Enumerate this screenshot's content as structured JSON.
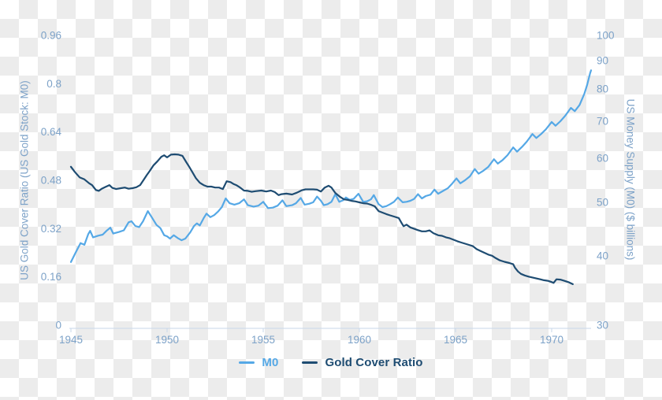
{
  "colors": {
    "checker": "#ececec",
    "axis_line": "#c7d7ea",
    "tick_text": "#7da2c8",
    "axis_title_text": "#7da2c8",
    "m0_line": "#55a8e6",
    "gcr_line": "#1e4c72"
  },
  "legend": {
    "items": [
      {
        "label": "M0",
        "color": "#55a8e6"
      },
      {
        "label": "Gold Cover Ratio",
        "color": "#1e4c72"
      }
    ]
  },
  "chart_data": {
    "type": "line",
    "title": "",
    "x_axis": {
      "range": [
        1945,
        1972.05
      ],
      "ticks": [
        {
          "label": "1945",
          "value": 1945
        },
        {
          "label": "1950",
          "value": 1950
        },
        {
          "label": "1955",
          "value": 1955
        },
        {
          "label": "1960",
          "value": 1960
        },
        {
          "label": "1965",
          "value": 1965
        },
        {
          "label": "1970",
          "value": 1970
        }
      ]
    },
    "left_axis": {
      "title": "US Gold Cover Ratio (US Gold Stock: M0)",
      "scale": "linear",
      "range": [
        0,
        0.96
      ],
      "ticks": [
        {
          "label": "0.96",
          "value": 0.96
        },
        {
          "label": "0.8",
          "value": 0.8
        },
        {
          "label": "0.64",
          "value": 0.64
        },
        {
          "label": "0.48",
          "value": 0.48
        },
        {
          "label": "0.32",
          "value": 0.32
        },
        {
          "label": "0.16",
          "value": 0.16
        },
        {
          "label": "0",
          "value": 0
        }
      ]
    },
    "right_axis": {
      "title": "US Money Supply (M0) ($ billions)",
      "scale": "log",
      "range": [
        30,
        100
      ],
      "ticks": [
        {
          "label": "100",
          "value": 100
        },
        {
          "label": "90",
          "value": 90
        },
        {
          "label": "80",
          "value": 80
        },
        {
          "label": "70",
          "value": 70
        },
        {
          "label": "60",
          "value": 60
        },
        {
          "label": "50",
          "value": 50
        },
        {
          "label": "40",
          "value": 40
        },
        {
          "label": "30",
          "value": 30
        }
      ]
    },
    "series": [
      {
        "name": "M0",
        "axis": "right",
        "color": "#55a8e6",
        "points": [
          [
            1945.0,
            39.0
          ],
          [
            1945.25,
            40.6
          ],
          [
            1945.5,
            42.2
          ],
          [
            1945.7,
            41.9
          ],
          [
            1945.9,
            43.8
          ],
          [
            1946.0,
            44.4
          ],
          [
            1946.15,
            43.2
          ],
          [
            1946.4,
            43.5
          ],
          [
            1946.65,
            43.7
          ],
          [
            1946.85,
            44.4
          ],
          [
            1947.05,
            45.0
          ],
          [
            1947.2,
            43.9
          ],
          [
            1947.5,
            44.2
          ],
          [
            1947.75,
            44.5
          ],
          [
            1948.0,
            46.0
          ],
          [
            1948.15,
            46.2
          ],
          [
            1948.35,
            45.3
          ],
          [
            1948.55,
            45.1
          ],
          [
            1948.75,
            46.2
          ],
          [
            1949.0,
            48.2
          ],
          [
            1949.2,
            47.0
          ],
          [
            1949.45,
            45.5
          ],
          [
            1949.65,
            44.9
          ],
          [
            1949.85,
            43.6
          ],
          [
            1950.0,
            43.4
          ],
          [
            1950.15,
            43.0
          ],
          [
            1950.35,
            43.6
          ],
          [
            1950.55,
            43.1
          ],
          [
            1950.75,
            42.7
          ],
          [
            1950.95,
            43.0
          ],
          [
            1951.2,
            44.1
          ],
          [
            1951.4,
            45.3
          ],
          [
            1951.55,
            45.8
          ],
          [
            1951.7,
            45.4
          ],
          [
            1951.9,
            46.8
          ],
          [
            1952.05,
            47.7
          ],
          [
            1952.25,
            47.0
          ],
          [
            1952.45,
            47.4
          ],
          [
            1952.65,
            48.1
          ],
          [
            1952.85,
            49.0
          ],
          [
            1953.05,
            50.8
          ],
          [
            1953.25,
            49.8
          ],
          [
            1953.5,
            49.5
          ],
          [
            1953.75,
            49.8
          ],
          [
            1954.0,
            50.6
          ],
          [
            1954.2,
            49.4
          ],
          [
            1954.5,
            49.1
          ],
          [
            1954.75,
            49.3
          ],
          [
            1955.0,
            50.1
          ],
          [
            1955.25,
            48.8
          ],
          [
            1955.5,
            48.9
          ],
          [
            1955.75,
            49.3
          ],
          [
            1956.0,
            50.4
          ],
          [
            1956.2,
            49.2
          ],
          [
            1956.5,
            49.4
          ],
          [
            1956.7,
            49.8
          ],
          [
            1956.95,
            50.9
          ],
          [
            1957.15,
            49.5
          ],
          [
            1957.4,
            49.7
          ],
          [
            1957.6,
            50.0
          ],
          [
            1957.8,
            51.2
          ],
          [
            1958.0,
            50.3
          ],
          [
            1958.15,
            49.4
          ],
          [
            1958.35,
            49.6
          ],
          [
            1958.55,
            50.1
          ],
          [
            1958.75,
            51.7
          ],
          [
            1958.95,
            50.1
          ],
          [
            1959.15,
            50.4
          ],
          [
            1959.3,
            51.0
          ],
          [
            1959.5,
            50.5
          ],
          [
            1959.7,
            50.7
          ],
          [
            1959.95,
            51.8
          ],
          [
            1960.2,
            50.1
          ],
          [
            1960.4,
            50.2
          ],
          [
            1960.6,
            50.6
          ],
          [
            1960.75,
            51.5
          ],
          [
            1961.0,
            49.6
          ],
          [
            1961.2,
            49.0
          ],
          [
            1961.4,
            49.2
          ],
          [
            1961.6,
            49.6
          ],
          [
            1961.8,
            50.1
          ],
          [
            1962.0,
            51.0
          ],
          [
            1962.25,
            50.0
          ],
          [
            1962.45,
            50.1
          ],
          [
            1962.65,
            50.3
          ],
          [
            1962.85,
            50.7
          ],
          [
            1963.05,
            51.7
          ],
          [
            1963.25,
            50.8
          ],
          [
            1963.45,
            51.3
          ],
          [
            1963.7,
            51.6
          ],
          [
            1963.9,
            52.7
          ],
          [
            1964.1,
            51.8
          ],
          [
            1964.35,
            52.4
          ],
          [
            1964.6,
            53.0
          ],
          [
            1964.8,
            53.9
          ],
          [
            1965.05,
            55.2
          ],
          [
            1965.25,
            54.1
          ],
          [
            1965.5,
            54.8
          ],
          [
            1965.75,
            55.7
          ],
          [
            1966.0,
            57.4
          ],
          [
            1966.2,
            56.3
          ],
          [
            1966.45,
            57.0
          ],
          [
            1966.7,
            57.9
          ],
          [
            1967.0,
            59.8
          ],
          [
            1967.2,
            58.7
          ],
          [
            1967.45,
            59.6
          ],
          [
            1967.7,
            60.8
          ],
          [
            1968.0,
            62.8
          ],
          [
            1968.2,
            61.7
          ],
          [
            1968.45,
            62.9
          ],
          [
            1968.7,
            64.3
          ],
          [
            1969.0,
            66.4
          ],
          [
            1969.2,
            65.3
          ],
          [
            1969.45,
            66.4
          ],
          [
            1969.7,
            67.7
          ],
          [
            1970.0,
            69.8
          ],
          [
            1970.2,
            68.7
          ],
          [
            1970.45,
            70.0
          ],
          [
            1970.7,
            71.6
          ],
          [
            1971.0,
            74.0
          ],
          [
            1971.2,
            73.0
          ],
          [
            1971.45,
            74.9
          ],
          [
            1971.7,
            78.5
          ],
          [
            1971.85,
            81.5
          ],
          [
            1972.0,
            85.5
          ],
          [
            1972.05,
            86.5
          ]
        ]
      },
      {
        "name": "Gold Cover Ratio",
        "axis": "left",
        "color": "#1e4c72",
        "points": [
          [
            1945.0,
            0.525
          ],
          [
            1945.2,
            0.508
          ],
          [
            1945.45,
            0.49
          ],
          [
            1945.7,
            0.483
          ],
          [
            1945.95,
            0.47
          ],
          [
            1946.1,
            0.464
          ],
          [
            1946.3,
            0.448
          ],
          [
            1946.45,
            0.445
          ],
          [
            1946.6,
            0.452
          ],
          [
            1946.8,
            0.458
          ],
          [
            1947.0,
            0.464
          ],
          [
            1947.15,
            0.455
          ],
          [
            1947.35,
            0.451
          ],
          [
            1947.6,
            0.454
          ],
          [
            1947.8,
            0.456
          ],
          [
            1948.0,
            0.452
          ],
          [
            1948.2,
            0.454
          ],
          [
            1948.4,
            0.457
          ],
          [
            1948.6,
            0.464
          ],
          [
            1948.8,
            0.483
          ],
          [
            1948.95,
            0.498
          ],
          [
            1949.1,
            0.511
          ],
          [
            1949.3,
            0.53
          ],
          [
            1949.5,
            0.543
          ],
          [
            1949.7,
            0.558
          ],
          [
            1949.85,
            0.563
          ],
          [
            1950.0,
            0.556
          ],
          [
            1950.2,
            0.565
          ],
          [
            1950.4,
            0.566
          ],
          [
            1950.6,
            0.565
          ],
          [
            1950.8,
            0.561
          ],
          [
            1951.0,
            0.54
          ],
          [
            1951.15,
            0.525
          ],
          [
            1951.3,
            0.509
          ],
          [
            1951.5,
            0.487
          ],
          [
            1951.7,
            0.472
          ],
          [
            1951.9,
            0.464
          ],
          [
            1952.1,
            0.459
          ],
          [
            1952.3,
            0.459
          ],
          [
            1952.5,
            0.456
          ],
          [
            1952.7,
            0.456
          ],
          [
            1952.9,
            0.451
          ],
          [
            1953.1,
            0.477
          ],
          [
            1953.3,
            0.474
          ],
          [
            1953.45,
            0.468
          ],
          [
            1953.6,
            0.464
          ],
          [
            1953.8,
            0.456
          ],
          [
            1954.0,
            0.446
          ],
          [
            1954.2,
            0.445
          ],
          [
            1954.4,
            0.442
          ],
          [
            1954.6,
            0.444
          ],
          [
            1954.9,
            0.446
          ],
          [
            1955.15,
            0.443
          ],
          [
            1955.4,
            0.446
          ],
          [
            1955.6,
            0.441
          ],
          [
            1955.8,
            0.431
          ],
          [
            1955.95,
            0.434
          ],
          [
            1956.2,
            0.436
          ],
          [
            1956.5,
            0.433
          ],
          [
            1956.75,
            0.439
          ],
          [
            1957.0,
            0.447
          ],
          [
            1957.2,
            0.45
          ],
          [
            1957.4,
            0.45
          ],
          [
            1957.6,
            0.45
          ],
          [
            1957.8,
            0.449
          ],
          [
            1958.0,
            0.443
          ],
          [
            1958.2,
            0.456
          ],
          [
            1958.4,
            0.462
          ],
          [
            1958.55,
            0.456
          ],
          [
            1958.75,
            0.438
          ],
          [
            1959.0,
            0.425
          ],
          [
            1959.2,
            0.417
          ],
          [
            1959.4,
            0.415
          ],
          [
            1959.6,
            0.412
          ],
          [
            1959.8,
            0.41
          ],
          [
            1960.0,
            0.407
          ],
          [
            1960.2,
            0.404
          ],
          [
            1960.4,
            0.403
          ],
          [
            1960.6,
            0.399
          ],
          [
            1960.8,
            0.394
          ],
          [
            1961.0,
            0.378
          ],
          [
            1961.2,
            0.373
          ],
          [
            1961.4,
            0.368
          ],
          [
            1961.6,
            0.364
          ],
          [
            1961.8,
            0.36
          ],
          [
            1962.05,
            0.355
          ],
          [
            1962.2,
            0.338
          ],
          [
            1962.3,
            0.328
          ],
          [
            1962.45,
            0.333
          ],
          [
            1962.65,
            0.324
          ],
          [
            1963.05,
            0.315
          ],
          [
            1963.25,
            0.311
          ],
          [
            1963.45,
            0.311
          ],
          [
            1963.65,
            0.314
          ],
          [
            1963.85,
            0.305
          ],
          [
            1964.1,
            0.298
          ],
          [
            1964.3,
            0.296
          ],
          [
            1964.5,
            0.291
          ],
          [
            1964.7,
            0.288
          ],
          [
            1964.9,
            0.283
          ],
          [
            1965.1,
            0.278
          ],
          [
            1965.3,
            0.274
          ],
          [
            1965.5,
            0.27
          ],
          [
            1965.7,
            0.266
          ],
          [
            1965.9,
            0.262
          ],
          [
            1966.1,
            0.252
          ],
          [
            1966.3,
            0.246
          ],
          [
            1966.5,
            0.24
          ],
          [
            1966.7,
            0.234
          ],
          [
            1966.9,
            0.23
          ],
          [
            1967.1,
            0.222
          ],
          [
            1967.3,
            0.215
          ],
          [
            1967.55,
            0.21
          ],
          [
            1967.8,
            0.206
          ],
          [
            1968.0,
            0.202
          ],
          [
            1968.1,
            0.19
          ],
          [
            1968.25,
            0.178
          ],
          [
            1968.4,
            0.17
          ],
          [
            1968.6,
            0.165
          ],
          [
            1968.8,
            0.161
          ],
          [
            1969.0,
            0.158
          ],
          [
            1969.2,
            0.155
          ],
          [
            1969.4,
            0.152
          ],
          [
            1969.6,
            0.149
          ],
          [
            1969.8,
            0.147
          ],
          [
            1970.0,
            0.143
          ],
          [
            1970.1,
            0.14
          ],
          [
            1970.25,
            0.152
          ],
          [
            1970.45,
            0.151
          ],
          [
            1970.65,
            0.147
          ],
          [
            1970.9,
            0.142
          ],
          [
            1971.1,
            0.136
          ]
        ]
      }
    ]
  }
}
